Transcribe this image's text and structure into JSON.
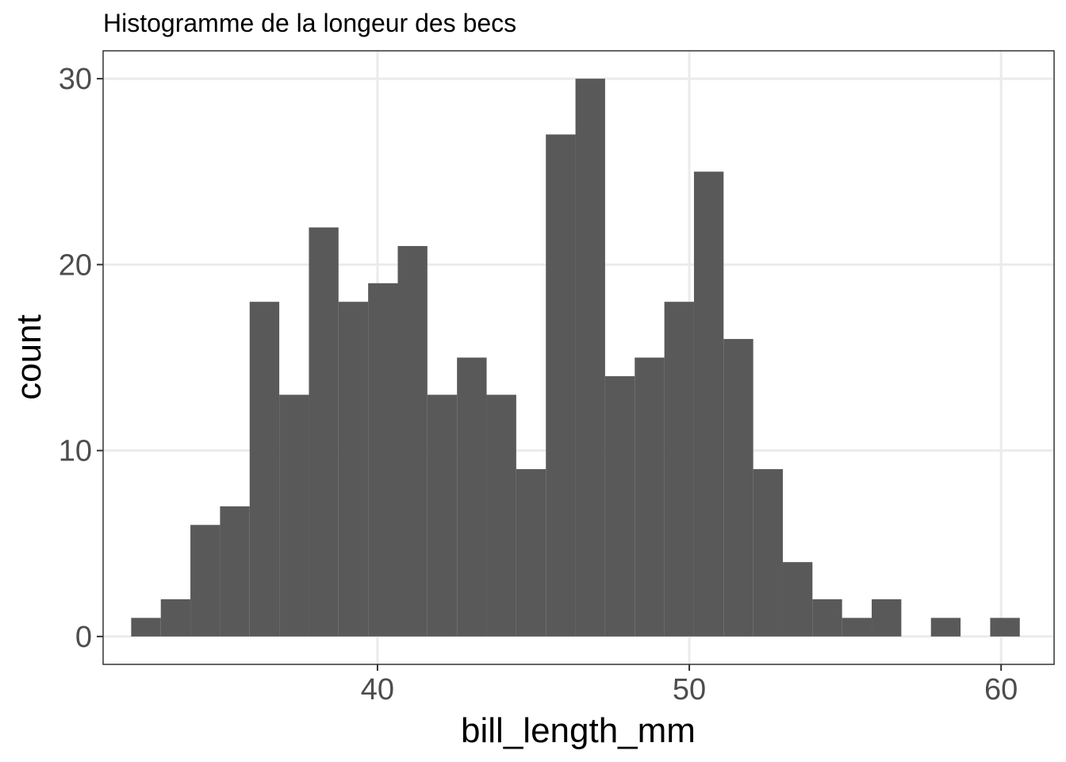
{
  "chart_data": {
    "type": "bar",
    "title": "Histogramme de la longeur des becs",
    "xlabel": "bill_length_mm",
    "ylabel": "count",
    "x_range": [
      31.2,
      61.7
    ],
    "ylim": [
      -1.5,
      31.5
    ],
    "x_ticks": [
      40,
      50,
      60
    ],
    "y_ticks": [
      0,
      10,
      20,
      30
    ],
    "bin_width": 0.95,
    "bins": [
      {
        "x0": 32.1,
        "x1": 33.05,
        "count": 1
      },
      {
        "x0": 33.05,
        "x1": 34.0,
        "count": 2
      },
      {
        "x0": 34.0,
        "x1": 34.95,
        "count": 6
      },
      {
        "x0": 34.95,
        "x1": 35.9,
        "count": 7
      },
      {
        "x0": 35.9,
        "x1": 36.85,
        "count": 18
      },
      {
        "x0": 36.85,
        "x1": 37.8,
        "count": 13
      },
      {
        "x0": 37.8,
        "x1": 38.75,
        "count": 22
      },
      {
        "x0": 38.75,
        "x1": 39.7,
        "count": 18
      },
      {
        "x0": 39.7,
        "x1": 40.65,
        "count": 19
      },
      {
        "x0": 40.65,
        "x1": 41.6,
        "count": 21
      },
      {
        "x0": 41.6,
        "x1": 42.55,
        "count": 13
      },
      {
        "x0": 42.55,
        "x1": 43.5,
        "count": 15
      },
      {
        "x0": 43.5,
        "x1": 44.45,
        "count": 13
      },
      {
        "x0": 44.45,
        "x1": 45.4,
        "count": 9
      },
      {
        "x0": 45.4,
        "x1": 46.35,
        "count": 27
      },
      {
        "x0": 46.35,
        "x1": 47.3,
        "count": 30
      },
      {
        "x0": 47.3,
        "x1": 48.25,
        "count": 14
      },
      {
        "x0": 48.25,
        "x1": 49.2,
        "count": 15
      },
      {
        "x0": 49.2,
        "x1": 50.15,
        "count": 18
      },
      {
        "x0": 50.15,
        "x1": 51.1,
        "count": 25
      },
      {
        "x0": 51.1,
        "x1": 52.05,
        "count": 16
      },
      {
        "x0": 52.05,
        "x1": 53.0,
        "count": 9
      },
      {
        "x0": 53.0,
        "x1": 53.95,
        "count": 4
      },
      {
        "x0": 53.95,
        "x1": 54.9,
        "count": 2
      },
      {
        "x0": 54.9,
        "x1": 55.85,
        "count": 1
      },
      {
        "x0": 55.85,
        "x1": 56.8,
        "count": 2
      },
      {
        "x0": 56.8,
        "x1": 57.75,
        "count": 0
      },
      {
        "x0": 57.75,
        "x1": 58.7,
        "count": 1
      },
      {
        "x0": 58.7,
        "x1": 59.65,
        "count": 0
      },
      {
        "x0": 59.65,
        "x1": 60.6,
        "count": 1
      }
    ],
    "bar_color": "#595959",
    "grid": true,
    "legend": "none",
    "theme": "bw"
  }
}
